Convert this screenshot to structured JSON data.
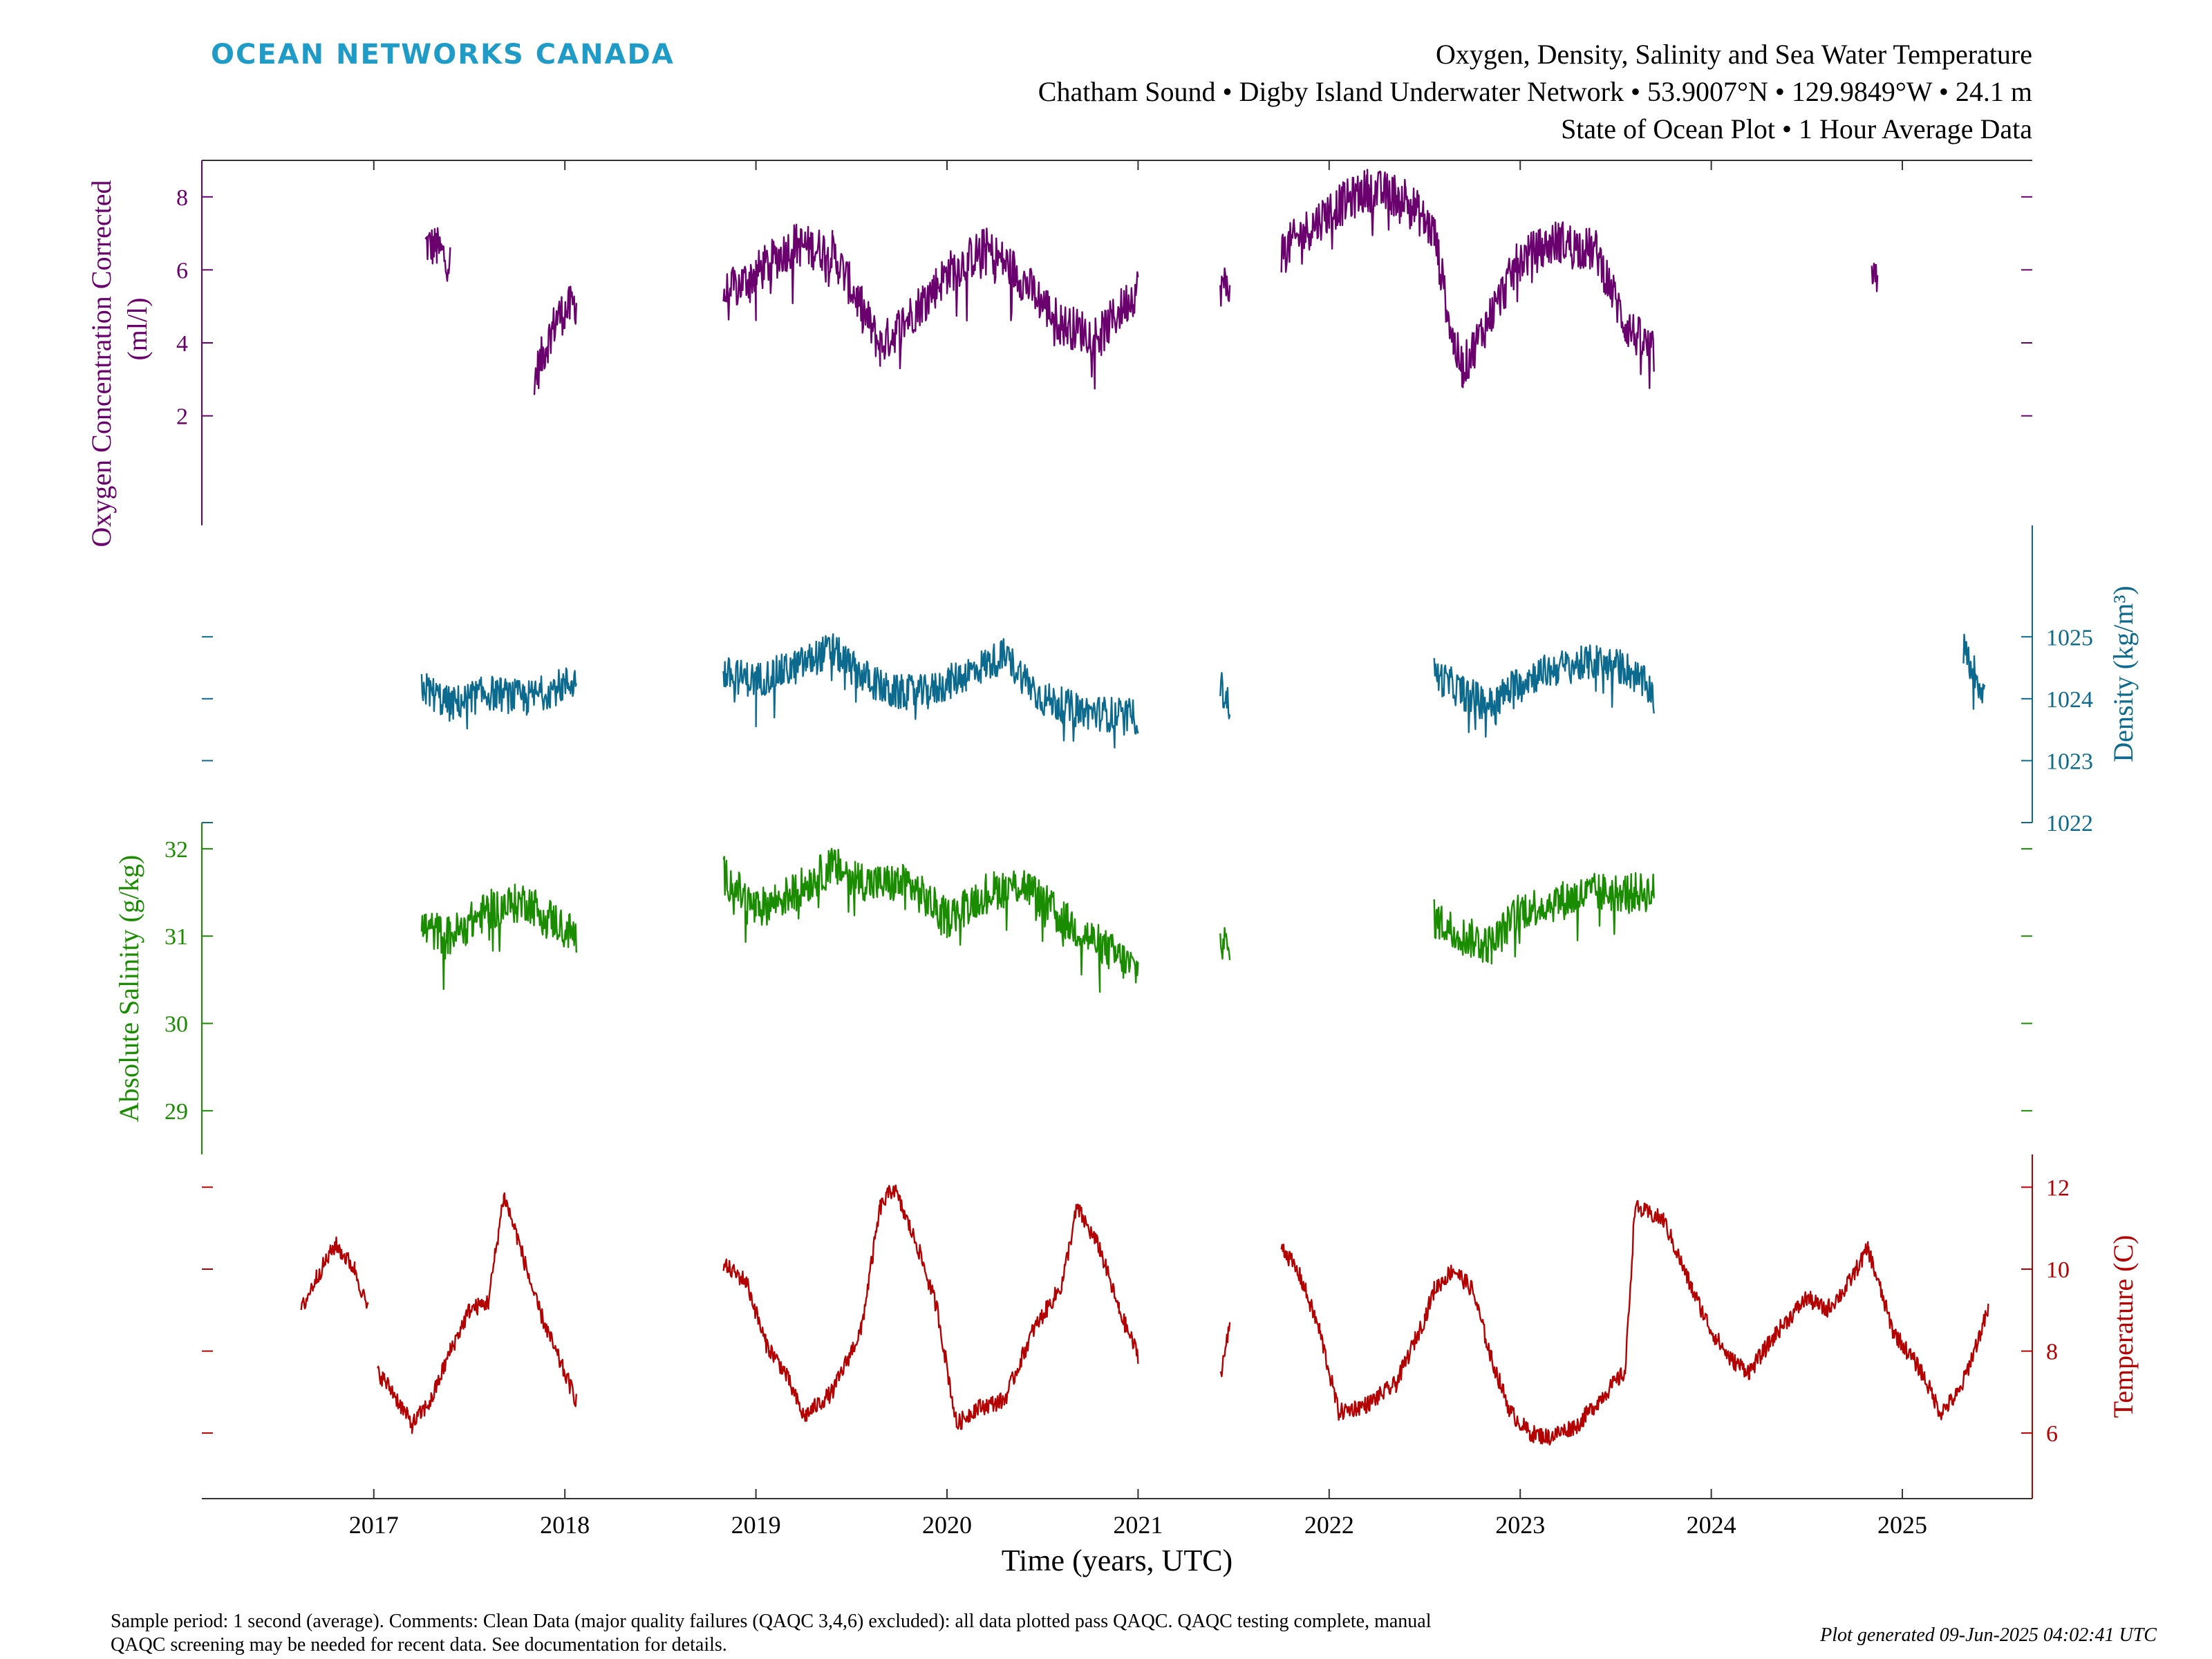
{
  "header": {
    "brand": "OCEAN NETWORKS CANADA",
    "brand_color": "#1f9bc7",
    "title_line1": "Oxygen, Density, Salinity and Sea Water Temperature",
    "title_line2": "Chatham Sound • Digby Island Underwater Network • 53.9007°N • 129.9849°W • 24.1 m",
    "title_line3": "State of Ocean Plot • 1 Hour Average Data"
  },
  "footer": {
    "note_line1": "Sample period: 1 second (average). Comments: Clean Data (major quality failures (QAQC 3,4,6) excluded): all data plotted pass QAQC. QAQC testing complete, manual",
    "note_line2": "QAQC screening may be needed for recent data. See documentation for details.",
    "generated": "Plot generated 09-Jun-2025 04:02:41 UTC"
  },
  "chart_data": {
    "type": "line",
    "xlabel": "Time (years, UTC)",
    "xlim": [
      2016.1,
      2025.68
    ],
    "x_ticks": [
      2017,
      2018,
      2019,
      2020,
      2021,
      2022,
      2023,
      2024,
      2025
    ],
    "x_tick_labels": [
      "2017",
      "2018",
      "2019",
      "2020",
      "2021",
      "2022",
      "2023",
      "2024",
      "2025"
    ],
    "series": [
      {
        "name": "Oxygen",
        "ylabel_line1": "Oxygen Concentration Corrected",
        "ylabel_line2": "(ml/l)",
        "color": "#6a006e",
        "axis_side": "left",
        "ylim": [
          -1,
          9
        ],
        "y_ticks": [
          2,
          4,
          6,
          8
        ],
        "y_tick_labels": [
          "2",
          "4",
          "6",
          "8"
        ],
        "segments": [
          {
            "x": [
              2017.27,
              2017.33,
              2017.4
            ],
            "y": [
              6.7,
              6.6,
              6.2
            ]
          },
          {
            "x": [
              2017.84,
              2017.9,
              2017.96,
              2018.06
            ],
            "y": [
              3.0,
              3.9,
              4.7,
              5.1
            ]
          },
          {
            "x": [
              2018.83,
              2019.0,
              2019.2,
              2019.4,
              2019.55,
              2019.65,
              2019.8,
              2020.0,
              2020.2,
              2020.35,
              2020.6,
              2020.8,
              2021.0
            ],
            "y": [
              5.3,
              5.9,
              6.7,
              6.5,
              5.0,
              3.9,
              4.7,
              5.9,
              6.6,
              6.0,
              4.5,
              4.2,
              5.5
            ]
          },
          {
            "x": [
              2021.43,
              2021.48
            ],
            "y": [
              5.6,
              5.5
            ]
          },
          {
            "x": [
              2021.75,
              2022.0,
              2022.2,
              2022.4,
              2022.55,
              2022.65,
              2022.7,
              2022.85,
              2023.0,
              2023.2,
              2023.4,
              2023.55,
              2023.7
            ],
            "y": [
              6.5,
              7.6,
              8.2,
              8.0,
              7.0,
              4.0,
              3.3,
              4.8,
              6.3,
              6.8,
              6.5,
              4.5,
              3.7
            ]
          },
          {
            "x": [
              2024.84,
              2024.87
            ],
            "y": [
              5.8,
              5.5
            ]
          }
        ]
      },
      {
        "name": "Density",
        "ylabel": "Density (kg/m³)",
        "color": "#0b6a8e",
        "axis_side": "right",
        "ylim": [
          1022,
          1026.8
        ],
        "y_ticks": [
          1022,
          1023,
          1024,
          1025
        ],
        "y_tick_labels": [
          "1022",
          "1023",
          "1024",
          "1025"
        ],
        "segments": [
          {
            "x": [
              2017.25,
              2017.4,
              2017.6,
              2017.8,
              2018.06
            ],
            "y": [
              1024.2,
              1023.9,
              1024.1,
              1024.0,
              1024.3
            ]
          },
          {
            "x": [
              2018.83,
              2019.0,
              2019.2,
              2019.4,
              2019.5,
              2019.7,
              2019.9,
              2020.1,
              2020.3,
              2020.5,
              2020.7,
              2021.0
            ],
            "y": [
              1024.4,
              1024.3,
              1024.5,
              1024.8,
              1024.5,
              1024.1,
              1024.1,
              1024.4,
              1024.7,
              1024.0,
              1023.8,
              1023.7
            ]
          },
          {
            "x": [
              2021.43,
              2021.48
            ],
            "y": [
              1024.2,
              1023.9
            ]
          },
          {
            "x": [
              2022.55,
              2022.7,
              2022.85,
              2023.0,
              2023.2,
              2023.4,
              2023.55,
              2023.7
            ],
            "y": [
              1024.4,
              1024.1,
              1023.9,
              1024.3,
              1024.5,
              1024.6,
              1024.5,
              1024.1
            ]
          },
          {
            "x": [
              2025.32,
              2025.38,
              2025.43
            ],
            "y": [
              1024.8,
              1024.4,
              1024.1
            ]
          }
        ]
      },
      {
        "name": "Salinity",
        "ylabel": "Absolute Salinity (g/kg)",
        "color": "#1a8c00",
        "axis_side": "left",
        "ylim": [
          28.5,
          32.3
        ],
        "y_ticks": [
          29,
          30,
          31,
          32
        ],
        "y_tick_labels": [
          "29",
          "30",
          "31",
          "32"
        ],
        "segments": [
          {
            "x": [
              2017.25,
              2017.4,
              2017.6,
              2017.8,
              2018.06
            ],
            "y": [
              31.1,
              31.0,
              31.3,
              31.4,
              31.0
            ]
          },
          {
            "x": [
              2018.83,
              2019.0,
              2019.2,
              2019.4,
              2019.6,
              2019.8,
              2020.0,
              2020.2,
              2020.4,
              2020.6,
              2020.8,
              2021.0
            ],
            "y": [
              31.7,
              31.3,
              31.5,
              31.8,
              31.6,
              31.6,
              31.2,
              31.5,
              31.6,
              31.2,
              30.9,
              30.6
            ]
          },
          {
            "x": [
              2021.43,
              2021.48
            ],
            "y": [
              31.0,
              30.8
            ]
          },
          {
            "x": [
              2022.55,
              2022.7,
              2022.85,
              2023.0,
              2023.2,
              2023.4,
              2023.55,
              2023.7
            ],
            "y": [
              31.2,
              31.0,
              30.9,
              31.3,
              31.4,
              31.5,
              31.5,
              31.5
            ]
          }
        ]
      },
      {
        "name": "Temperature",
        "ylabel": "Temperature (C)",
        "color": "#b30000",
        "axis_side": "right",
        "ylim": [
          4.4,
          12.8
        ],
        "y_ticks": [
          6,
          8,
          10,
          12
        ],
        "y_tick_labels": [
          "6",
          "8",
          "10",
          "12"
        ],
        "segments": [
          {
            "x": [
              2016.62,
              2016.7,
              2016.8,
              2016.9,
              2016.97
            ],
            "y": [
              9.0,
              9.8,
              10.6,
              10.0,
              9.0
            ]
          },
          {
            "x": [
              2017.02,
              2017.1,
              2017.2,
              2017.3,
              2017.4,
              2017.5,
              2017.6,
              2017.68,
              2017.75,
              2017.85,
              2017.95,
              2018.06
            ],
            "y": [
              7.5,
              7.0,
              6.2,
              6.8,
              8.0,
              9.0,
              9.2,
              11.8,
              10.8,
              9.2,
              8.0,
              6.8
            ]
          },
          {
            "x": [
              2018.83,
              2018.95,
              2019.05,
              2019.15,
              2019.25,
              2019.4,
              2019.55,
              2019.65,
              2019.72,
              2019.85,
              2019.95,
              2020.05,
              2020.15,
              2020.3,
              2020.45,
              2020.6,
              2020.68,
              2020.8,
              2020.9,
              2021.0
            ],
            "y": [
              10.1,
              9.7,
              8.2,
              7.5,
              6.4,
              7.0,
              8.5,
              11.5,
              12.0,
              10.5,
              9.0,
              6.2,
              6.6,
              6.8,
              8.5,
              9.6,
              11.5,
              10.5,
              9.0,
              7.9
            ]
          },
          {
            "x": [
              2021.43,
              2021.48
            ],
            "y": [
              7.4,
              8.6
            ]
          },
          {
            "x": [
              2021.75,
              2021.85,
              2021.95,
              2022.05,
              2022.2,
              2022.35,
              2022.5,
              2022.55,
              2022.65,
              2022.75,
              2022.85,
              2022.95,
              2023.05,
              2023.15,
              2023.3,
              2023.45,
              2023.55,
              2023.6,
              2023.75,
              2023.9,
              2024.0,
              2024.1,
              2024.2,
              2024.35,
              2024.5,
              2024.6,
              2024.7,
              2024.82,
              2024.95,
              2025.1,
              2025.2,
              2025.3,
              2025.45
            ],
            "y": [
              10.6,
              9.8,
              8.5,
              6.5,
              6.7,
              7.2,
              8.8,
              9.5,
              10.0,
              9.5,
              7.8,
              6.5,
              6.0,
              5.9,
              6.2,
              7.0,
              7.5,
              11.5,
              11.2,
              9.5,
              8.5,
              7.8,
              7.5,
              8.5,
              9.3,
              9.0,
              9.5,
              10.5,
              8.5,
              7.5,
              6.5,
              7.0,
              9.0
            ]
          }
        ]
      }
    ]
  }
}
